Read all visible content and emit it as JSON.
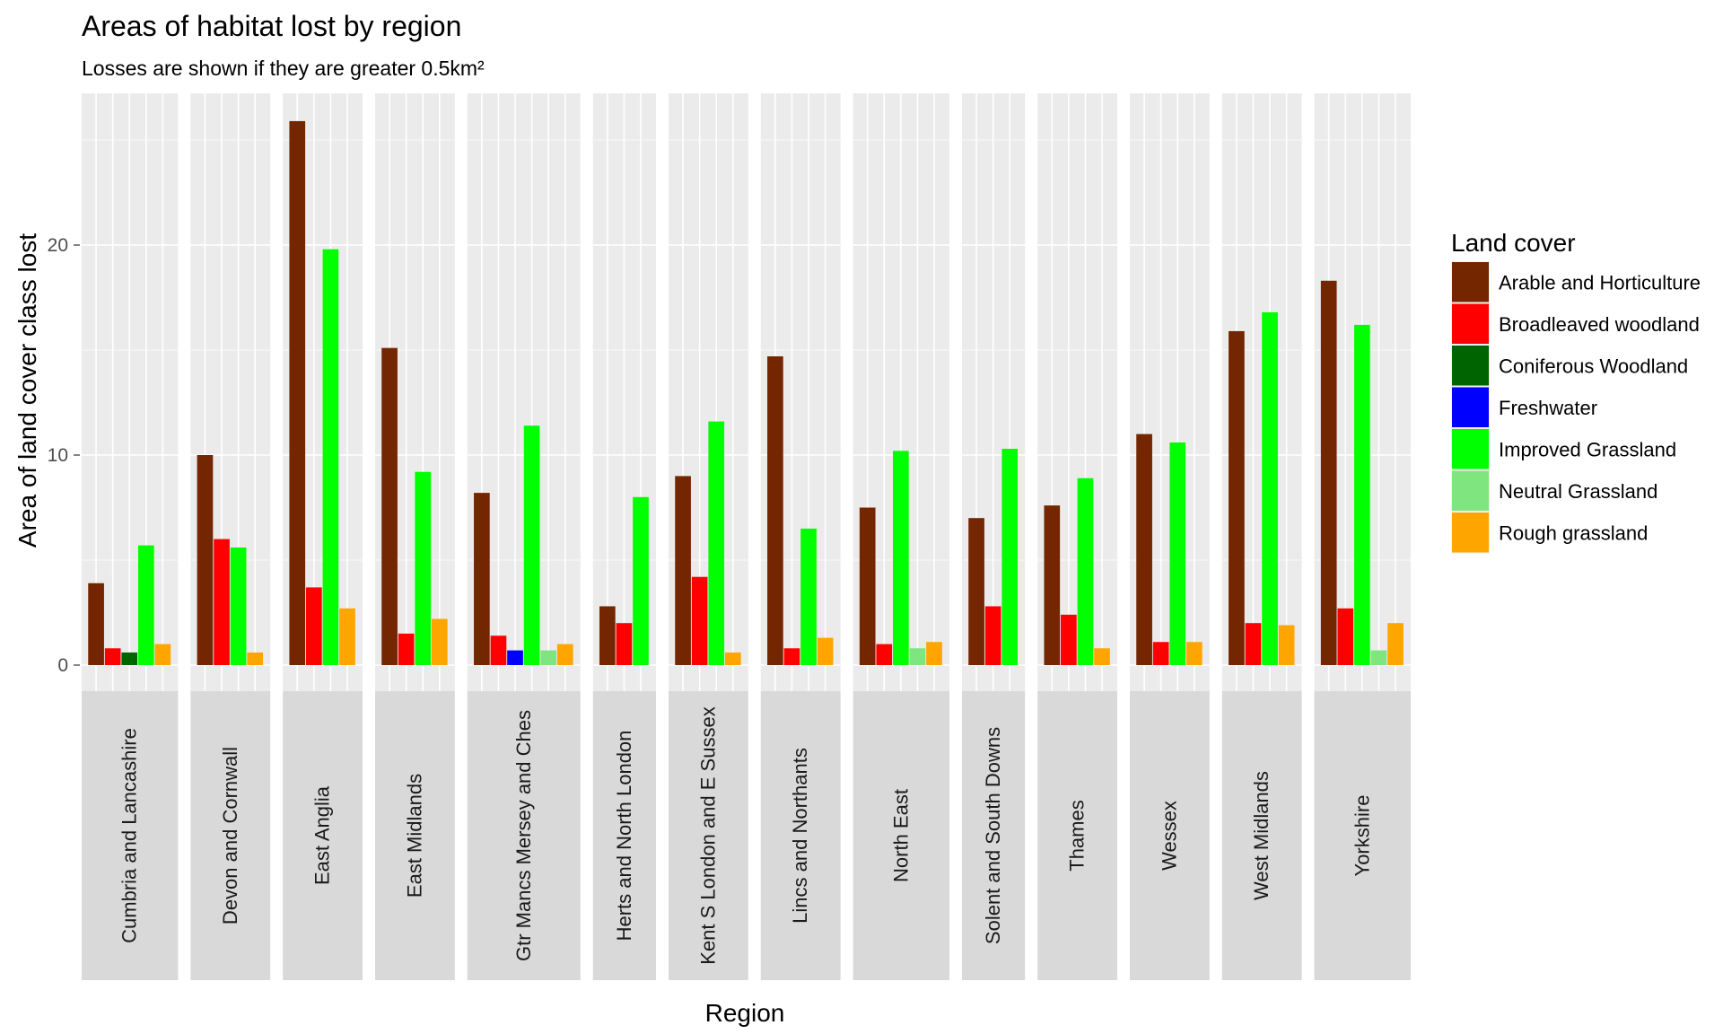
{
  "chart_data": {
    "type": "bar",
    "title": "Areas of habitat lost by region",
    "subtitle": "Losses are shown if they are greater 0.5km²",
    "xlabel": "Region",
    "ylabel": "Area of land cover class lost",
    "ylim": [
      0,
      27
    ],
    "yticks": [
      0,
      10,
      20
    ],
    "grid": true,
    "legend": {
      "title": "Land cover",
      "position": "right",
      "entries": [
        {
          "name": "Arable and Horticulture",
          "color": "#732600"
        },
        {
          "name": "Broadleaved woodland",
          "color": "#FF0000"
        },
        {
          "name": "Coniferous Woodland",
          "color": "#006400"
        },
        {
          "name": "Freshwater",
          "color": "#0000FF"
        },
        {
          "name": "Improved Grassland",
          "color": "#00FF00"
        },
        {
          "name": "Neutral Grassland",
          "color": "#7FE57F"
        },
        {
          "name": "Rough grassland",
          "color": "#FFA500"
        }
      ]
    },
    "panels": [
      {
        "region": "Cumbria and Lancashire",
        "bars": [
          {
            "cover": "Arable and Horticulture",
            "value": 3.9
          },
          {
            "cover": "Broadleaved woodland",
            "value": 0.8
          },
          {
            "cover": "Coniferous Woodland",
            "value": 0.6
          },
          {
            "cover": "Improved Grassland",
            "value": 5.7
          },
          {
            "cover": "Rough grassland",
            "value": 1.0
          }
        ]
      },
      {
        "region": "Devon and Cornwall",
        "bars": [
          {
            "cover": "Arable and Horticulture",
            "value": 10.0
          },
          {
            "cover": "Broadleaved woodland",
            "value": 6.0
          },
          {
            "cover": "Improved Grassland",
            "value": 5.6
          },
          {
            "cover": "Rough grassland",
            "value": 0.6
          }
        ]
      },
      {
        "region": "East Anglia",
        "bars": [
          {
            "cover": "Arable and Horticulture",
            "value": 25.9
          },
          {
            "cover": "Broadleaved woodland",
            "value": 3.7
          },
          {
            "cover": "Improved Grassland",
            "value": 19.8
          },
          {
            "cover": "Rough grassland",
            "value": 2.7
          }
        ]
      },
      {
        "region": "East Midlands",
        "bars": [
          {
            "cover": "Arable and Horticulture",
            "value": 15.1
          },
          {
            "cover": "Broadleaved woodland",
            "value": 1.5
          },
          {
            "cover": "Improved Grassland",
            "value": 9.2
          },
          {
            "cover": "Rough grassland",
            "value": 2.2
          }
        ]
      },
      {
        "region": "Gtr Mancs Mersey and Ches",
        "bars": [
          {
            "cover": "Arable and Horticulture",
            "value": 8.2
          },
          {
            "cover": "Broadleaved woodland",
            "value": 1.4
          },
          {
            "cover": "Freshwater",
            "value": 0.7
          },
          {
            "cover": "Improved Grassland",
            "value": 11.4
          },
          {
            "cover": "Neutral Grassland",
            "value": 0.7
          },
          {
            "cover": "Rough grassland",
            "value": 1.0
          }
        ]
      },
      {
        "region": "Herts and North London",
        "bars": [
          {
            "cover": "Arable and Horticulture",
            "value": 2.8
          },
          {
            "cover": "Broadleaved woodland",
            "value": 2.0
          },
          {
            "cover": "Improved Grassland",
            "value": 8.0
          }
        ]
      },
      {
        "region": "Kent S London and E Sussex",
        "bars": [
          {
            "cover": "Arable and Horticulture",
            "value": 9.0
          },
          {
            "cover": "Broadleaved woodland",
            "value": 4.2
          },
          {
            "cover": "Improved Grassland",
            "value": 11.6
          },
          {
            "cover": "Rough grassland",
            "value": 0.6
          }
        ]
      },
      {
        "region": "Lincs and Northants",
        "bars": [
          {
            "cover": "Arable and Horticulture",
            "value": 14.7
          },
          {
            "cover": "Broadleaved woodland",
            "value": 0.8
          },
          {
            "cover": "Improved Grassland",
            "value": 6.5
          },
          {
            "cover": "Rough grassland",
            "value": 1.3
          }
        ]
      },
      {
        "region": "North East",
        "bars": [
          {
            "cover": "Arable and Horticulture",
            "value": 7.5
          },
          {
            "cover": "Broadleaved woodland",
            "value": 1.0
          },
          {
            "cover": "Improved Grassland",
            "value": 10.2
          },
          {
            "cover": "Neutral Grassland",
            "value": 0.8
          },
          {
            "cover": "Rough grassland",
            "value": 1.1
          }
        ]
      },
      {
        "region": "Solent and South Downs",
        "bars": [
          {
            "cover": "Arable and Horticulture",
            "value": 7.0
          },
          {
            "cover": "Broadleaved woodland",
            "value": 2.8
          },
          {
            "cover": "Improved Grassland",
            "value": 10.3
          }
        ]
      },
      {
        "region": "Thames",
        "bars": [
          {
            "cover": "Arable and Horticulture",
            "value": 7.6
          },
          {
            "cover": "Broadleaved woodland",
            "value": 2.4
          },
          {
            "cover": "Improved Grassland",
            "value": 8.9
          },
          {
            "cover": "Rough grassland",
            "value": 0.8
          }
        ]
      },
      {
        "region": "Wessex",
        "bars": [
          {
            "cover": "Arable and Horticulture",
            "value": 11.0
          },
          {
            "cover": "Broadleaved woodland",
            "value": 1.1
          },
          {
            "cover": "Improved Grassland",
            "value": 10.6
          },
          {
            "cover": "Rough grassland",
            "value": 1.1
          }
        ]
      },
      {
        "region": "West Midlands",
        "bars": [
          {
            "cover": "Arable and Horticulture",
            "value": 15.9
          },
          {
            "cover": "Broadleaved woodland",
            "value": 2.0
          },
          {
            "cover": "Improved Grassland",
            "value": 16.8
          },
          {
            "cover": "Rough grassland",
            "value": 1.9
          }
        ]
      },
      {
        "region": "Yorkshire",
        "bars": [
          {
            "cover": "Arable and Horticulture",
            "value": 18.3
          },
          {
            "cover": "Broadleaved woodland",
            "value": 2.7
          },
          {
            "cover": "Improved Grassland",
            "value": 16.2
          },
          {
            "cover": "Neutral Grassland",
            "value": 0.7
          },
          {
            "cover": "Rough grassland",
            "value": 2.0
          }
        ]
      }
    ]
  }
}
